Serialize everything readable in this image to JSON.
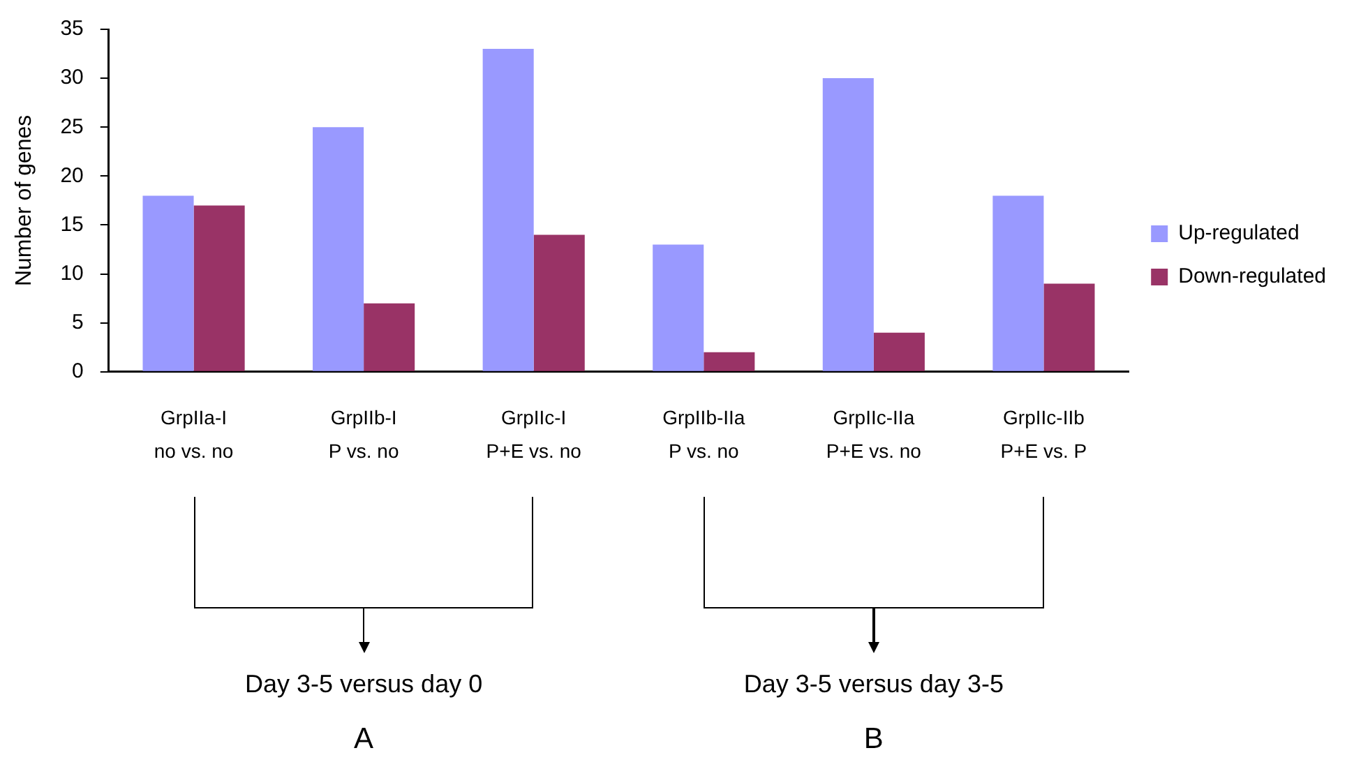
{
  "chart_data": {
    "type": "bar",
    "ylabel": "Number of genes",
    "categories": [
      "GrpIIa-I\nno vs. no",
      "GrpIIb-I\nP vs. no",
      "GrpIIc-I\nP+E vs. no",
      "GrpIIb-IIa\nP vs. no",
      "GrpIIc-IIa\nP+E vs. no",
      "GrpIIc-IIb\nP+E vs. P"
    ],
    "series": [
      {
        "name": "Up-regulated",
        "color": "#9999ff",
        "values": [
          18,
          25,
          33,
          13,
          30,
          18
        ]
      },
      {
        "name": "Down-regulated",
        "color": "#993366",
        "values": [
          17,
          7,
          14,
          2,
          4,
          9
        ]
      }
    ],
    "ylim": [
      0,
      35
    ],
    "yticks": [
      0,
      5,
      10,
      15,
      20,
      25,
      30,
      35
    ],
    "grid": false,
    "legend": "right",
    "annotations": [
      "Day 3-5 versus day 0",
      "Day 3-5 versus day 3-5",
      "A",
      "B"
    ]
  }
}
